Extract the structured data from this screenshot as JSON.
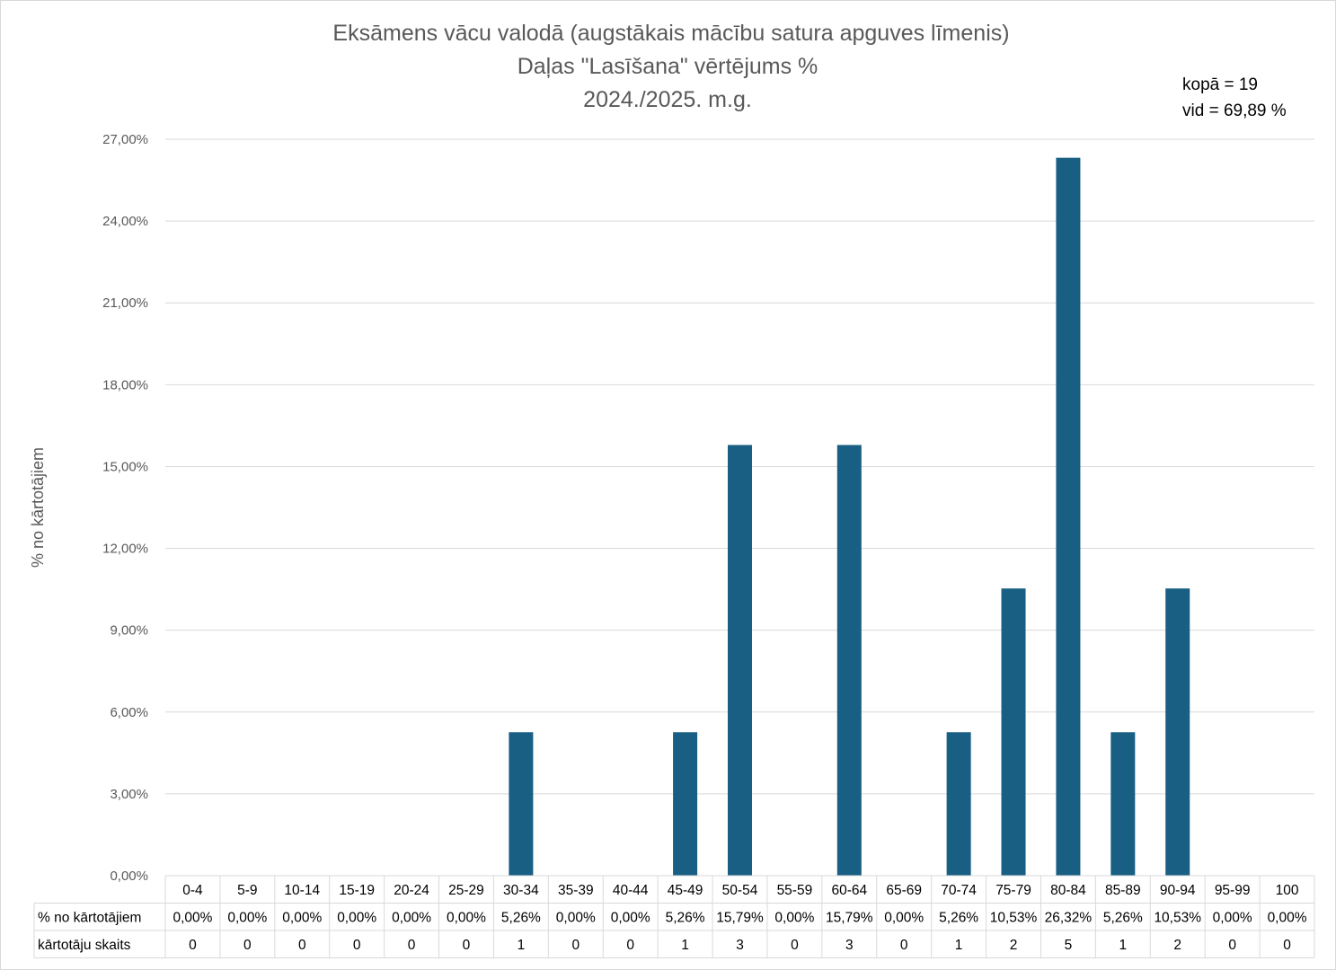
{
  "chart_data": {
    "type": "bar",
    "title_lines": [
      "Eksāmens vācu valodā (augstākais mācību satura apguves līmenis)",
      "Daļas \"Lasīšana\" vērtējums %",
      "2024./2025. m.g."
    ],
    "annotations": [
      "kopā = 19",
      "vid = 69,89 %"
    ],
    "ylabel": "% no kārtotājiem",
    "ylim": [
      0,
      27
    ],
    "yticks": [
      0,
      3,
      6,
      9,
      12,
      15,
      18,
      21,
      24,
      27
    ],
    "ytick_labels": [
      "0,00%",
      "3,00%",
      "6,00%",
      "9,00%",
      "12,00%",
      "15,00%",
      "18,00%",
      "21,00%",
      "24,00%",
      "27,00%"
    ],
    "grid": true,
    "bar_color": "#185f83",
    "categories": [
      "0-4",
      "5-9",
      "10-14",
      "15-19",
      "20-24",
      "25-29",
      "30-34",
      "35-39",
      "40-44",
      "45-49",
      "50-54",
      "55-59",
      "60-64",
      "65-69",
      "70-74",
      "75-79",
      "80-84",
      "85-89",
      "90-94",
      "95-99",
      "100"
    ],
    "series": [
      {
        "name": "% no kārtotājiem",
        "values": [
          0,
          0,
          0,
          0,
          0,
          0,
          5.26,
          0,
          0,
          5.26,
          15.79,
          0,
          15.79,
          0,
          5.26,
          10.53,
          26.32,
          5.26,
          10.53,
          0,
          0
        ],
        "labels": [
          "0,00%",
          "0,00%",
          "0,00%",
          "0,00%",
          "0,00%",
          "0,00%",
          "5,26%",
          "0,00%",
          "0,00%",
          "5,26%",
          "15,79%",
          "0,00%",
          "15,79%",
          "0,00%",
          "5,26%",
          "10,53%",
          "26,32%",
          "5,26%",
          "10,53%",
          "0,00%",
          "0,00%"
        ]
      }
    ],
    "table_rows": [
      {
        "header": "% no kārtotājiem",
        "cells": [
          "0,00%",
          "0,00%",
          "0,00%",
          "0,00%",
          "0,00%",
          "0,00%",
          "5,26%",
          "0,00%",
          "0,00%",
          "5,26%",
          "15,79%",
          "0,00%",
          "15,79%",
          "0,00%",
          "5,26%",
          "10,53%",
          "26,32%",
          "5,26%",
          "10,53%",
          "0,00%",
          "0,00%"
        ]
      },
      {
        "header": "kārtotāju skaits",
        "cells": [
          "0",
          "0",
          "0",
          "0",
          "0",
          "0",
          "1",
          "0",
          "0",
          "1",
          "3",
          "0",
          "3",
          "0",
          "1",
          "2",
          "5",
          "1",
          "2",
          "0",
          "0"
        ]
      }
    ]
  }
}
